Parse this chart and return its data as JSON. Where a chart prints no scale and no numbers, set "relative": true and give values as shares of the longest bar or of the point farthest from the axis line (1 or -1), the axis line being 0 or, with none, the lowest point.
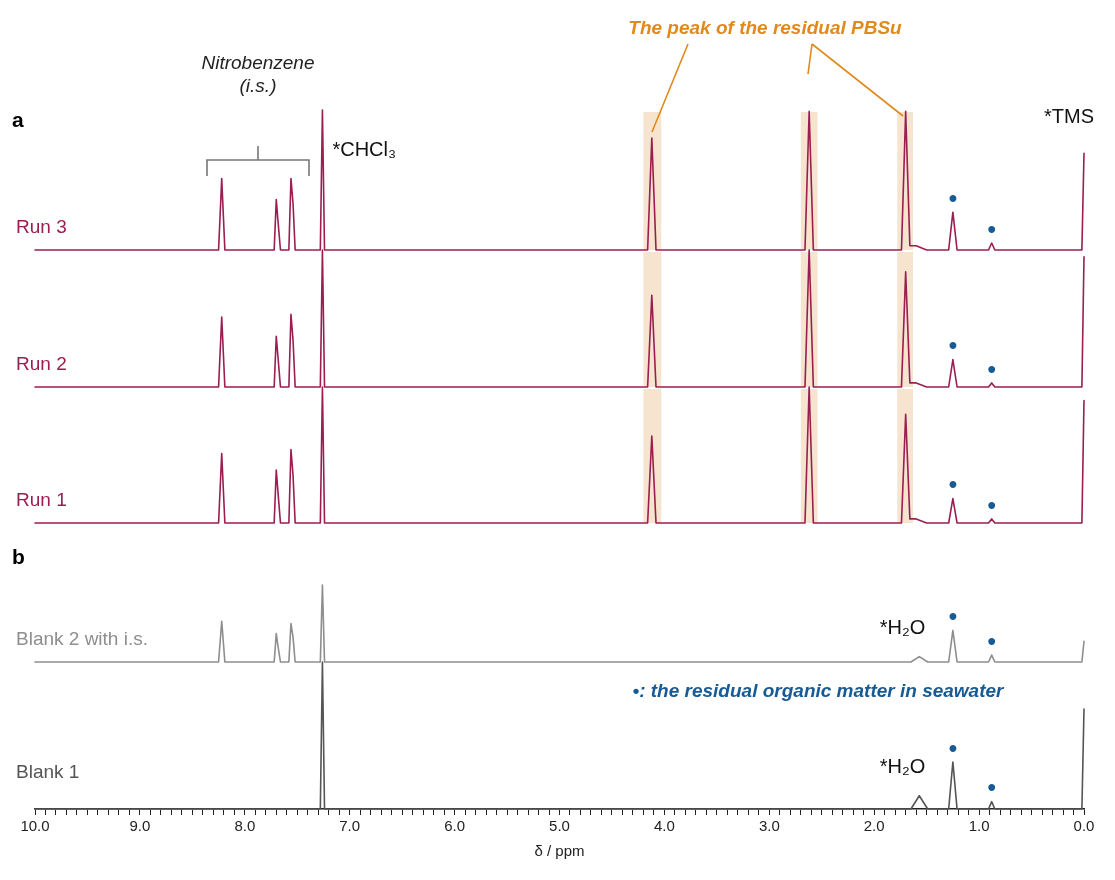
{
  "chart_data": [
    {
      "type": "line",
      "relative": true,
      "xlim": [
        10,
        0
      ],
      "tick_labels": false,
      "legend": false,
      "series": [
        {
          "name": "Run 3",
          "color": "#9a1e52",
          "x": [
            10,
            8.25,
            8.22,
            8.19,
            7.72,
            7.7,
            7.685,
            7.66,
            7.58,
            7.56,
            7.54,
            7.52,
            7.28,
            7.26,
            7.24,
            4.16,
            4.12,
            4.08,
            2.66,
            2.62,
            2.58,
            1.74,
            1.7,
            1.66,
            1.6,
            1.5,
            1.29,
            1.25,
            1.21,
            0.91,
            0.88,
            0.85,
            0.02,
            0.0
          ],
          "values": [
            0,
            0,
            0.51,
            0,
            0,
            0.36,
            0.22,
            0,
            0,
            0.51,
            0.33,
            0,
            0,
            1,
            0,
            0,
            0.8,
            0,
            0,
            0.99,
            0,
            0,
            0.99,
            0.03,
            0.03,
            0,
            0,
            0.27,
            0,
            0,
            0.05,
            0,
            0,
            0.69
          ]
        }
      ],
      "bands": [
        {
          "axis": "x",
          "from": 4.2,
          "to": 4.03,
          "color": "#f6e4cf"
        },
        {
          "axis": "x",
          "from": 2.7,
          "to": 2.54,
          "color": "#f6e4cf"
        },
        {
          "axis": "x",
          "from": 1.78,
          "to": 1.63,
          "color": "#f6e4cf"
        }
      ],
      "annotations": [
        "a",
        "Nitrobenzene",
        "(i.s.)",
        {
          "text": "*CHCl₃",
          "x": 7.26,
          "y": 1
        },
        {
          "text": "*TMS",
          "x": 0,
          "y": 0.69
        },
        "The peak of the residual PBSu",
        {
          "text": "•",
          "x": 1.25,
          "y": 0.27
        },
        {
          "text": "•",
          "x": 0.88,
          "y": 0.05
        }
      ]
    },
    {
      "type": "line",
      "relative": true,
      "xlim": [
        10,
        0
      ],
      "tick_labels": false,
      "legend": false,
      "series": [
        {
          "name": "Run 2",
          "color": "#9a1e52",
          "x": [
            10,
            8.25,
            8.22,
            8.19,
            7.72,
            7.7,
            7.685,
            7.66,
            7.58,
            7.56,
            7.54,
            7.52,
            7.28,
            7.26,
            7.24,
            4.16,
            4.12,
            4.08,
            2.66,
            2.62,
            2.58,
            1.74,
            1.7,
            1.66,
            1.6,
            1.5,
            1.29,
            1.25,
            1.21,
            0.91,
            0.88,
            0.85,
            0.02,
            0.0
          ],
          "values": [
            0,
            0,
            0.51,
            0,
            0,
            0.37,
            0.23,
            0,
            0,
            0.53,
            0.34,
            0,
            0,
            1,
            0,
            0,
            0.67,
            0,
            0,
            1,
            0,
            0,
            0.84,
            0.03,
            0.03,
            0,
            0,
            0.2,
            0,
            0,
            0.03,
            0,
            0,
            0.95
          ]
        }
      ],
      "bands": [
        {
          "axis": "x",
          "from": 4.2,
          "to": 4.03,
          "color": "#f6e4cf"
        },
        {
          "axis": "x",
          "from": 2.7,
          "to": 2.54,
          "color": "#f6e4cf"
        },
        {
          "axis": "x",
          "from": 1.78,
          "to": 1.63,
          "color": "#f6e4cf"
        }
      ],
      "annotations": [
        {
          "text": "•",
          "x": 1.25,
          "y": 0.2
        },
        {
          "text": "•",
          "x": 0.88,
          "y": 0.03
        }
      ]
    },
    {
      "type": "line",
      "relative": true,
      "xlim": [
        10,
        0
      ],
      "tick_labels": false,
      "legend": false,
      "series": [
        {
          "name": "Run 1",
          "color": "#9a1e52",
          "x": [
            10,
            8.25,
            8.22,
            8.19,
            7.72,
            7.7,
            7.685,
            7.66,
            7.58,
            7.56,
            7.54,
            7.52,
            7.28,
            7.26,
            7.24,
            4.16,
            4.12,
            4.08,
            2.66,
            2.62,
            2.58,
            1.74,
            1.7,
            1.66,
            1.6,
            1.5,
            1.29,
            1.25,
            1.21,
            0.91,
            0.88,
            0.85,
            0.02,
            0.0
          ],
          "values": [
            0,
            0,
            0.51,
            0,
            0,
            0.39,
            0.24,
            0,
            0,
            0.54,
            0.35,
            0,
            0,
            1,
            0,
            0,
            0.64,
            0,
            0,
            1,
            0,
            0,
            0.8,
            0.03,
            0.03,
            0,
            0,
            0.18,
            0,
            0,
            0.03,
            0,
            0,
            0.9
          ]
        }
      ],
      "bands": [
        {
          "axis": "x",
          "from": 4.2,
          "to": 4.03,
          "color": "#f6e4cf"
        },
        {
          "axis": "x",
          "from": 2.7,
          "to": 2.54,
          "color": "#f6e4cf"
        },
        {
          "axis": "x",
          "from": 1.78,
          "to": 1.63,
          "color": "#f6e4cf"
        }
      ],
      "annotations": [
        {
          "text": "•",
          "x": 1.25,
          "y": 0.18
        },
        {
          "text": "•",
          "x": 0.88,
          "y": 0.03
        }
      ]
    },
    {
      "type": "line",
      "relative": true,
      "xlim": [
        10,
        0
      ],
      "tick_labels": false,
      "legend": false,
      "series": [
        {
          "name": "Blank 2 with i.s.",
          "color": "#8e8e8e",
          "x": [
            10,
            8.25,
            8.22,
            8.19,
            7.72,
            7.7,
            7.685,
            7.66,
            7.58,
            7.56,
            7.54,
            7.52,
            7.28,
            7.26,
            7.24,
            1.65,
            1.57,
            1.49,
            1.29,
            1.25,
            1.21,
            0.91,
            0.88,
            0.85,
            0.02,
            0.0
          ],
          "values": [
            0,
            0,
            0.53,
            0,
            0,
            0.37,
            0.22,
            0,
            0,
            0.5,
            0.32,
            0,
            0,
            1,
            0,
            0,
            0.07,
            0,
            0,
            0.41,
            0,
            0,
            0.09,
            0,
            0,
            0.27
          ]
        }
      ],
      "annotations": [
        "b",
        {
          "text": "*H₂O",
          "x": 1.57,
          "y": 0.07
        },
        "•: the residual organic matter in seawater",
        {
          "text": "•",
          "x": 1.25,
          "y": 0.41
        },
        {
          "text": "•",
          "x": 0.88,
          "y": 0.09
        }
      ]
    },
    {
      "type": "line",
      "relative": true,
      "xlim": [
        10,
        0
      ],
      "tick_labels": "x",
      "legend": false,
      "xlabel": "δ / ppm",
      "xticks": [
        {
          "value": 10,
          "label": "10.0"
        },
        {
          "value": 9.9,
          "label": null
        },
        {
          "value": 9.8,
          "label": null
        },
        {
          "value": 9.7,
          "label": null
        },
        {
          "value": 9.6,
          "label": null
        },
        {
          "value": 9.5,
          "label": null
        },
        {
          "value": 9.4,
          "label": null
        },
        {
          "value": 9.3,
          "label": null
        },
        {
          "value": 9.2,
          "label": null
        },
        {
          "value": 9.1,
          "label": null
        },
        {
          "value": 9,
          "label": "9.0"
        },
        {
          "value": 8.9,
          "label": null
        },
        {
          "value": 8.8,
          "label": null
        },
        {
          "value": 8.7,
          "label": null
        },
        {
          "value": 8.6,
          "label": null
        },
        {
          "value": 8.5,
          "label": null
        },
        {
          "value": 8.4,
          "label": null
        },
        {
          "value": 8.3,
          "label": null
        },
        {
          "value": 8.2,
          "label": null
        },
        {
          "value": 8.1,
          "label": null
        },
        {
          "value": 8,
          "label": "8.0"
        },
        {
          "value": 7.9,
          "label": null
        },
        {
          "value": 7.8,
          "label": null
        },
        {
          "value": 7.7,
          "label": null
        },
        {
          "value": 7.6,
          "label": null
        },
        {
          "value": 7.5,
          "label": null
        },
        {
          "value": 7.4,
          "label": null
        },
        {
          "value": 7.3,
          "label": null
        },
        {
          "value": 7.2,
          "label": null
        },
        {
          "value": 7.1,
          "label": null
        },
        {
          "value": 7,
          "label": "7.0"
        },
        {
          "value": 6.9,
          "label": null
        },
        {
          "value": 6.8,
          "label": null
        },
        {
          "value": 6.7,
          "label": null
        },
        {
          "value": 6.6,
          "label": null
        },
        {
          "value": 6.5,
          "label": null
        },
        {
          "value": 6.4,
          "label": null
        },
        {
          "value": 6.3,
          "label": null
        },
        {
          "value": 6.2,
          "label": null
        },
        {
          "value": 6.1,
          "label": null
        },
        {
          "value": 6,
          "label": "6.0"
        },
        {
          "value": 5.9,
          "label": null
        },
        {
          "value": 5.8,
          "label": null
        },
        {
          "value": 5.7,
          "label": null
        },
        {
          "value": 5.6,
          "label": null
        },
        {
          "value": 5.5,
          "label": null
        },
        {
          "value": 5.4,
          "label": null
        },
        {
          "value": 5.3,
          "label": null
        },
        {
          "value": 5.2,
          "label": null
        },
        {
          "value": 5.1,
          "label": null
        },
        {
          "value": 5,
          "label": "5.0"
        },
        {
          "value": 4.9,
          "label": null
        },
        {
          "value": 4.8,
          "label": null
        },
        {
          "value": 4.7,
          "label": null
        },
        {
          "value": 4.6,
          "label": null
        },
        {
          "value": 4.5,
          "label": null
        },
        {
          "value": 4.4,
          "label": null
        },
        {
          "value": 4.3,
          "label": null
        },
        {
          "value": 4.2,
          "label": null
        },
        {
          "value": 4.1,
          "label": null
        },
        {
          "value": 4,
          "label": "4.0"
        },
        {
          "value": 3.9,
          "label": null
        },
        {
          "value": 3.8,
          "label": null
        },
        {
          "value": 3.7,
          "label": null
        },
        {
          "value": 3.6,
          "label": null
        },
        {
          "value": 3.5,
          "label": null
        },
        {
          "value": 3.4,
          "label": null
        },
        {
          "value": 3.3,
          "label": null
        },
        {
          "value": 3.2,
          "label": null
        },
        {
          "value": 3.1,
          "label": null
        },
        {
          "value": 3,
          "label": "3.0"
        },
        {
          "value": 2.9,
          "label": null
        },
        {
          "value": 2.8,
          "label": null
        },
        {
          "value": 2.7,
          "label": null
        },
        {
          "value": 2.6,
          "label": null
        },
        {
          "value": 2.5,
          "label": null
        },
        {
          "value": 2.4,
          "label": null
        },
        {
          "value": 2.3,
          "label": null
        },
        {
          "value": 2.2,
          "label": null
        },
        {
          "value": 2.1,
          "label": null
        },
        {
          "value": 2,
          "label": "2.0"
        },
        {
          "value": 1.9,
          "label": null
        },
        {
          "value": 1.8,
          "label": null
        },
        {
          "value": 1.7,
          "label": null
        },
        {
          "value": 1.6,
          "label": null
        },
        {
          "value": 1.5,
          "label": null
        },
        {
          "value": 1.4,
          "label": null
        },
        {
          "value": 1.3,
          "label": null
        },
        {
          "value": 1.2,
          "label": null
        },
        {
          "value": 1.1,
          "label": null
        },
        {
          "value": 1,
          "label": "1.0"
        },
        {
          "value": 0.9,
          "label": null
        },
        {
          "value": 0.8,
          "label": null
        },
        {
          "value": 0.7,
          "label": null
        },
        {
          "value": 0.6,
          "label": null
        },
        {
          "value": 0.5,
          "label": null
        },
        {
          "value": 0.4,
          "label": null
        },
        {
          "value": 0.3,
          "label": null
        },
        {
          "value": 0.2,
          "label": null
        },
        {
          "value": 0.1,
          "label": null
        },
        {
          "value": 0,
          "label": "0.0"
        }
      ],
      "series": [
        {
          "name": "Blank 1",
          "color": "#555555",
          "x": [
            10,
            7.28,
            7.26,
            7.24,
            1.65,
            1.57,
            1.49,
            1.29,
            1.25,
            1.21,
            0.91,
            0.88,
            0.85,
            0.02,
            0.0
          ],
          "values": [
            0,
            0,
            1,
            0,
            0,
            0.09,
            0,
            0,
            0.32,
            0,
            0,
            0.05,
            0,
            0,
            0.68
          ]
        }
      ],
      "annotations": [
        {
          "text": "*H₂O",
          "x": 1.57,
          "y": 0.09
        },
        {
          "text": "•",
          "x": 1.25,
          "y": 0.32
        },
        {
          "text": "•",
          "x": 0.88,
          "y": 0.05
        }
      ]
    }
  ]
}
